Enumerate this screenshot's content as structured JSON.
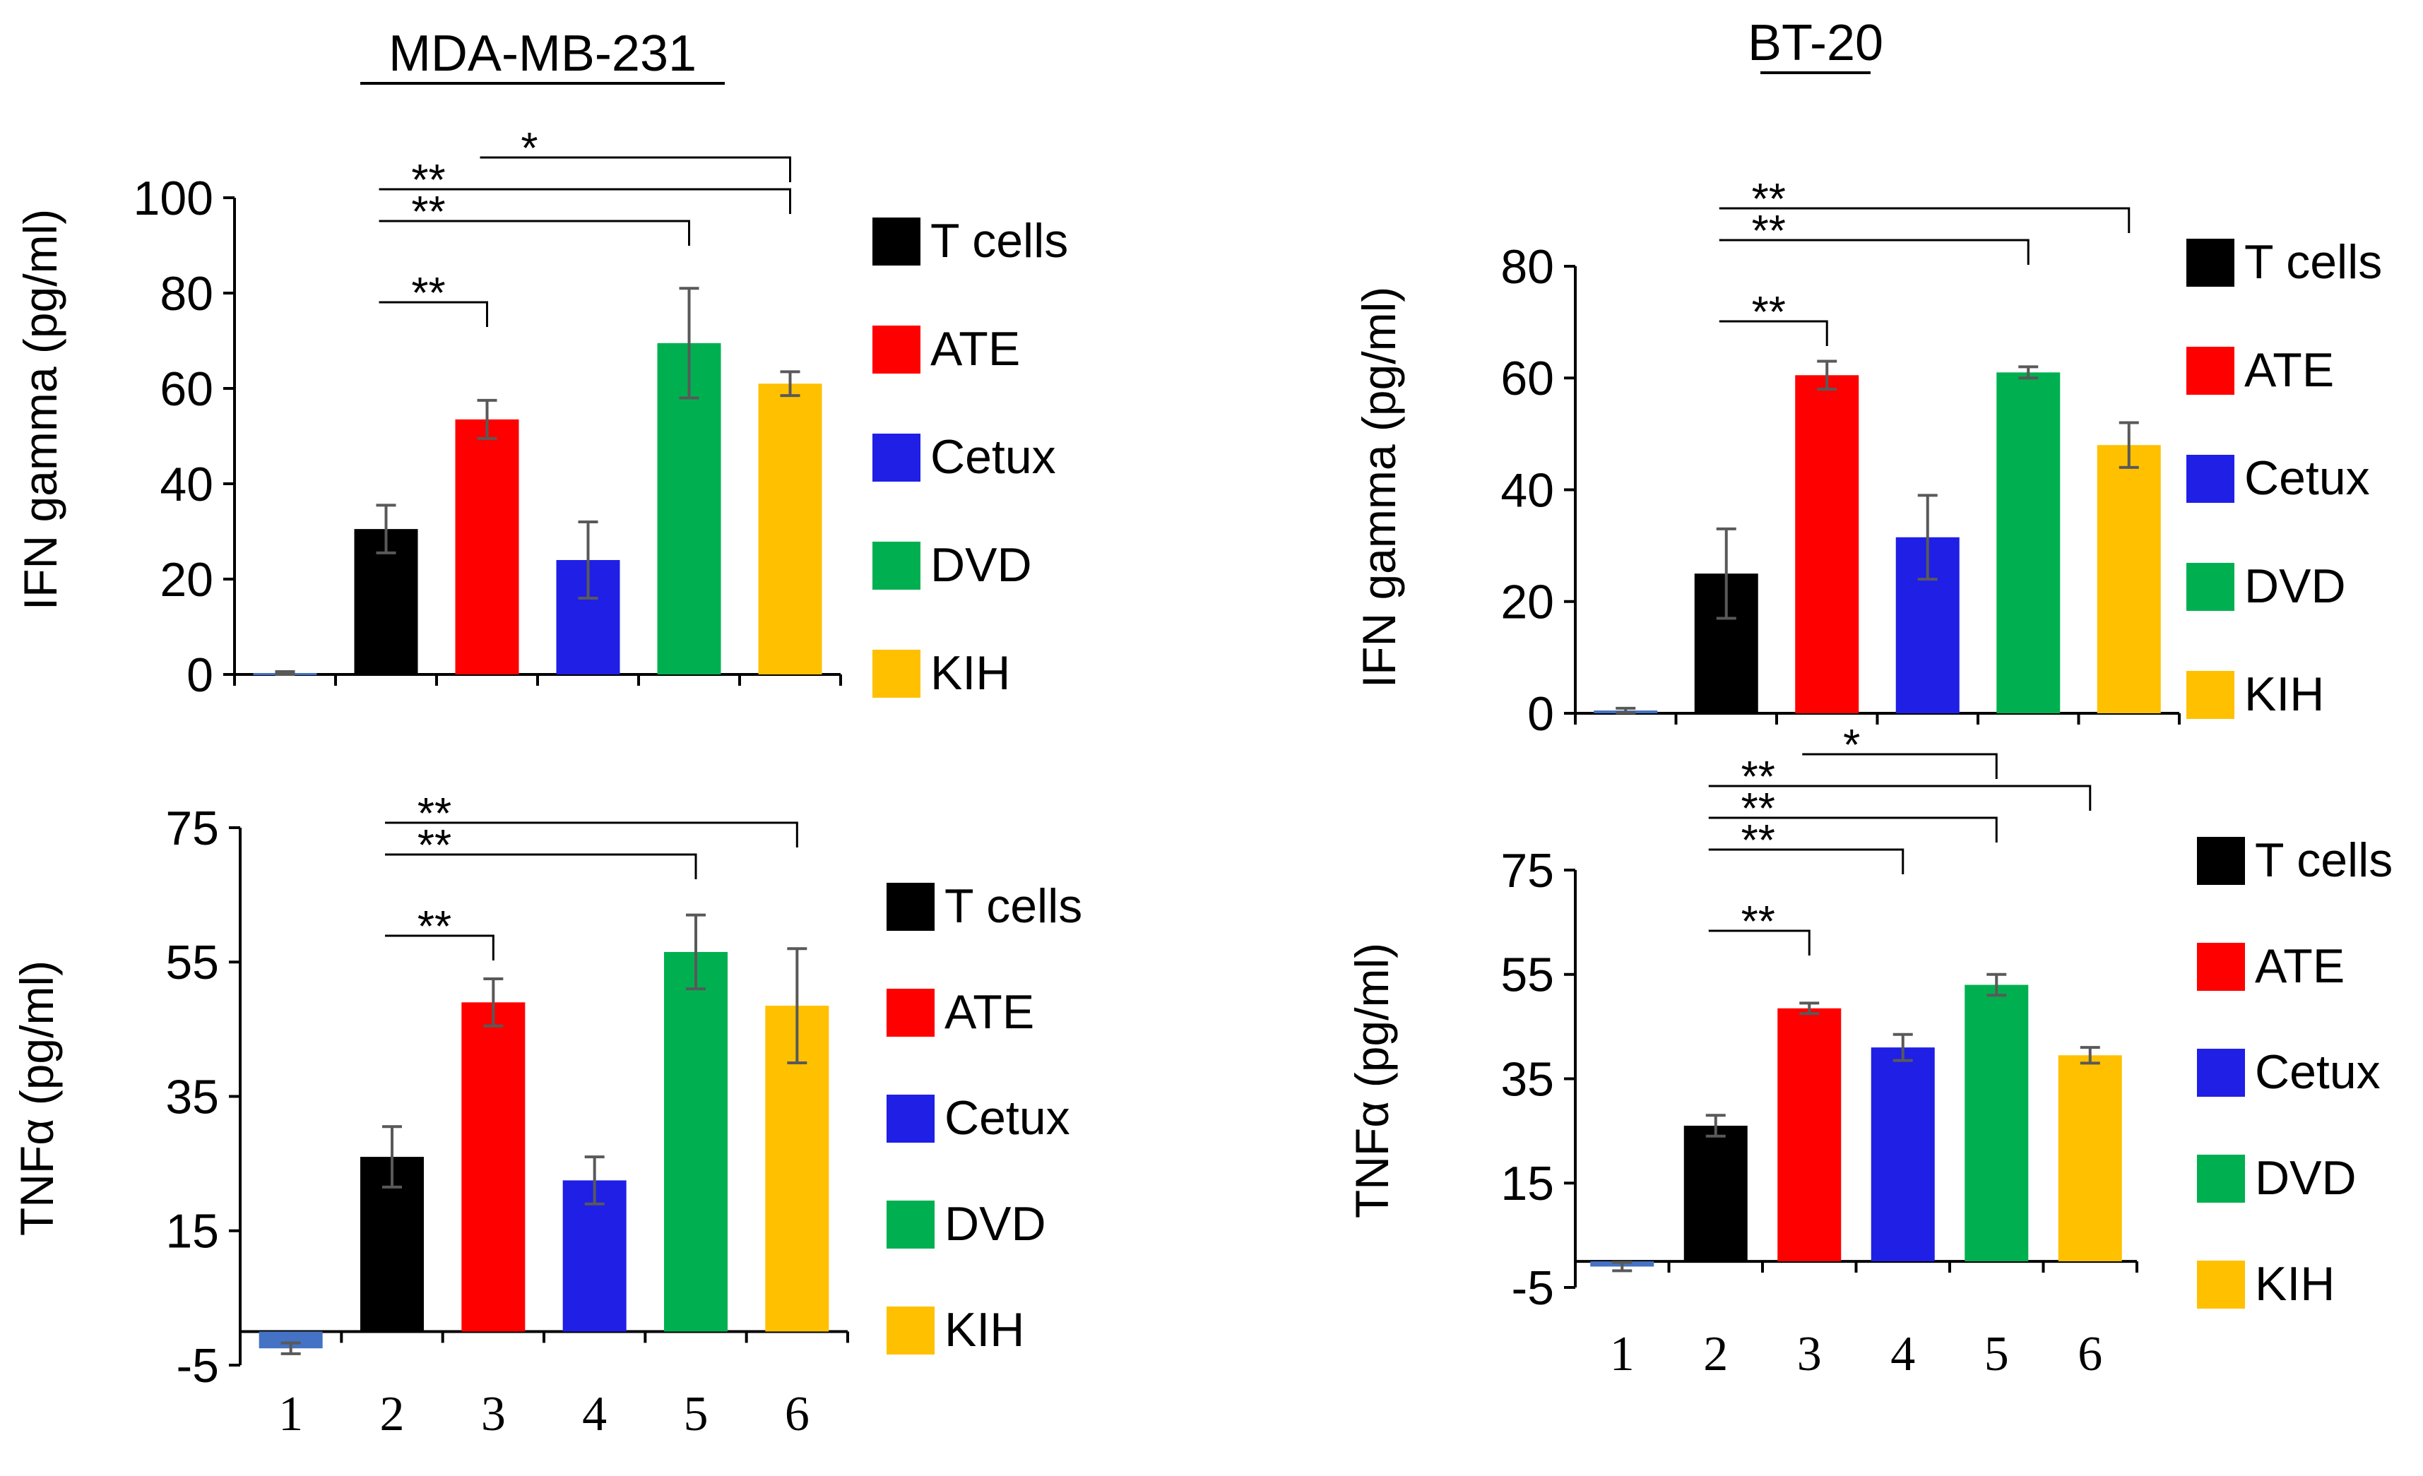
{
  "figure": {
    "titles": [
      "MDA-MB-231",
      "BT-20"
    ]
  },
  "chart_data": [
    {
      "type": "bar",
      "title": "MDA-MB-231",
      "ylabel": "IFN gamma (pg/ml)",
      "xlabel": "",
      "ylim": [
        0,
        100
      ],
      "yticks": [
        "0",
        "20",
        "40",
        "60",
        "80",
        "100"
      ],
      "categories": [
        "1",
        "2",
        "3",
        "4",
        "5",
        "6"
      ],
      "values": [
        0.3,
        30.5,
        53.5,
        24,
        69.5,
        61
      ],
      "errors": [
        0.3,
        5,
        4,
        8,
        11.5,
        2.5
      ],
      "series_names": [
        "",
        "T cells",
        "ATE",
        "Cetux",
        "DVD",
        "KIH"
      ],
      "legend": [
        "T cells",
        "ATE",
        "Cetux",
        "DVD",
        "KIH"
      ],
      "legend_position": "right",
      "significance": [
        {
          "from": "2",
          "to": "3",
          "label": "**"
        },
        {
          "from": "2",
          "to": "5",
          "label": "**"
        },
        {
          "from": "2",
          "to": "6",
          "label": "**"
        },
        {
          "from": "3",
          "to": "6",
          "label": "*"
        }
      ]
    },
    {
      "type": "bar",
      "title": "BT-20",
      "ylabel": "IFN gamma (pg/ml)",
      "xlabel": "",
      "ylim": [
        0,
        80
      ],
      "yticks": [
        "0",
        "20",
        "40",
        "60",
        "80"
      ],
      "categories": [
        "1",
        "2",
        "3",
        "4",
        "5",
        "6"
      ],
      "values": [
        0.5,
        25,
        60.5,
        31.5,
        61,
        48
      ],
      "errors": [
        0.4,
        8,
        2.5,
        7.5,
        1,
        4
      ],
      "series_names": [
        "",
        "T cells",
        "ATE",
        "Cetux",
        "DVD",
        "KIH"
      ],
      "legend": [
        "T cells",
        "ATE",
        "Cetux",
        "DVD",
        "KIH"
      ],
      "legend_position": "right",
      "significance": [
        {
          "from": "2",
          "to": "3",
          "label": "**"
        },
        {
          "from": "2",
          "to": "5",
          "label": "**"
        },
        {
          "from": "2",
          "to": "6",
          "label": "**"
        }
      ]
    },
    {
      "type": "bar",
      "title": "",
      "ylabel": "TNFα (pg/ml)",
      "xlabel": "",
      "ylim": [
        -5,
        75
      ],
      "yticks": [
        "-5",
        "15",
        "35",
        "55",
        "75"
      ],
      "categories": [
        "1",
        "2",
        "3",
        "4",
        "5",
        "6"
      ],
      "values": [
        -2.5,
        26,
        49,
        22.5,
        56.5,
        48.5
      ],
      "errors": [
        0.8,
        4.5,
        3.5,
        3.5,
        5.5,
        8.5
      ],
      "series_names": [
        "",
        "T cells",
        "ATE",
        "Cetux",
        "DVD",
        "KIH"
      ],
      "legend": [
        "T cells",
        "ATE",
        "Cetux",
        "DVD",
        "KIH"
      ],
      "legend_position": "right",
      "significance": [
        {
          "from": "2",
          "to": "3",
          "label": "**"
        },
        {
          "from": "2",
          "to": "5",
          "label": "**"
        },
        {
          "from": "2",
          "to": "6",
          "label": "**"
        }
      ]
    },
    {
      "type": "bar",
      "title": "",
      "ylabel": "TNFα (pg/ml)",
      "xlabel": "",
      "ylim": [
        -5,
        75
      ],
      "yticks": [
        "-5",
        "15",
        "35",
        "55",
        "75"
      ],
      "categories": [
        "1",
        "2",
        "3",
        "4",
        "5",
        "6"
      ],
      "values": [
        -1,
        26,
        48.5,
        41,
        53,
        39.5
      ],
      "errors": [
        0.8,
        2,
        1,
        2.5,
        2,
        1.5
      ],
      "series_names": [
        "",
        "T cells",
        "ATE",
        "Cetux",
        "DVD",
        "KIH"
      ],
      "legend": [
        "T cells",
        "ATE",
        "Cetux",
        "DVD",
        "KIH"
      ],
      "legend_position": "right",
      "significance": [
        {
          "from": "2",
          "to": "3",
          "label": "**"
        },
        {
          "from": "2",
          "to": "4",
          "label": "**"
        },
        {
          "from": "2",
          "to": "5",
          "label": "**"
        },
        {
          "from": "2",
          "to": "6",
          "label": "**"
        },
        {
          "from": "3",
          "to": "5",
          "label": "*"
        }
      ]
    }
  ],
  "colors": {
    "bars": [
      "#4472C4",
      "#000000",
      "#FF0000",
      "#1F1FE6",
      "#00B050",
      "#FFC000"
    ],
    "legend": [
      "#000000",
      "#FF0000",
      "#1F1FE6",
      "#00B050",
      "#FFC000"
    ],
    "axis": "#000000",
    "error_bar": "#595959",
    "bracket": "#000000"
  }
}
